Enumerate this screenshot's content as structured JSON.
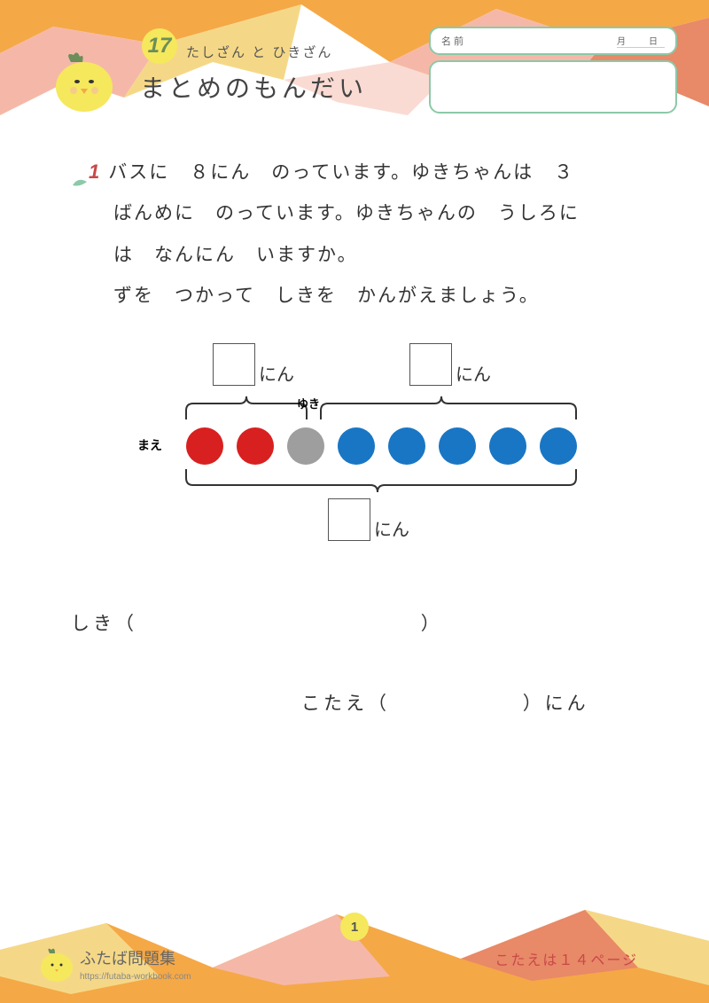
{
  "header": {
    "lesson_number": "17",
    "subtitle": "たしざん と ひきざん",
    "title": "まとめのもんだい",
    "name_label": "名 前",
    "date_label": "月　日",
    "bg_colors": {
      "orange": "#f5a846",
      "pink": "#f5b8a8",
      "yellow": "#f5d887",
      "salmon": "#e88968"
    }
  },
  "question": {
    "number": "1",
    "line1": "バスに　８にん　のっています。ゆきちゃんは　３",
    "line2": "ばんめに　のっています。ゆきちゃんの　うしろに",
    "line3": "は　なんにん　いますか。",
    "line4": "ずを　つかって　しきを　かんがえましょう。"
  },
  "diagram": {
    "unit_label": "にん",
    "yuki_label": "ゆき",
    "mae_label": "まえ",
    "circles": [
      {
        "color": "#d82020"
      },
      {
        "color": "#d82020"
      },
      {
        "color": "#9e9e9e"
      },
      {
        "color": "#1976c4"
      },
      {
        "color": "#1976c4"
      },
      {
        "color": "#1976c4"
      },
      {
        "color": "#1976c4"
      },
      {
        "color": "#1976c4"
      }
    ]
  },
  "answers": {
    "shiki_label": "しき（",
    "shiki_close": "）",
    "kotae_label": "こたえ（",
    "kotae_close": "）にん"
  },
  "footer": {
    "page_number": "1",
    "brand": "ふたば問題集",
    "url": "https://futaba-workbook.com",
    "answer_page": "こたえは１４ページ"
  }
}
